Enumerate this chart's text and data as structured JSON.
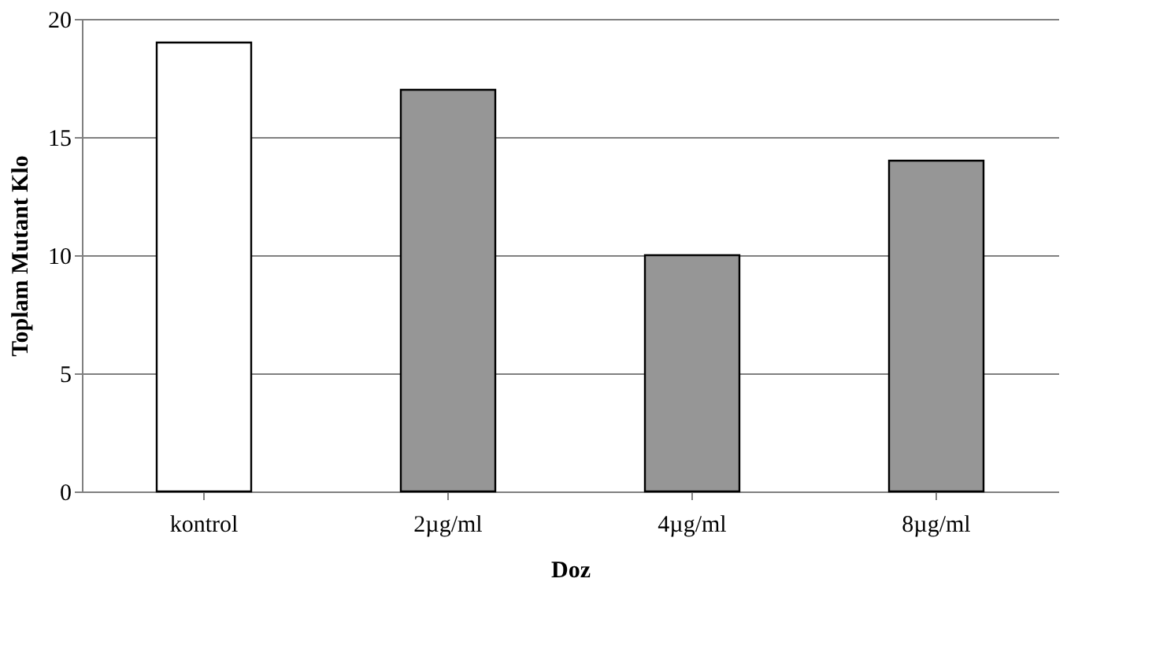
{
  "chart_data": {
    "type": "bar",
    "xlabel": "Doz",
    "ylabel": "Toplam Mutant Klo",
    "categories": [
      "kontrol",
      "2µg/ml",
      "4µg/ml",
      "8µg/ml"
    ],
    "values": [
      19,
      17,
      10,
      14
    ],
    "colors": [
      "#ffffff",
      "#969696",
      "#969696",
      "#969696"
    ],
    "ylim": [
      0,
      20
    ],
    "yticks": [
      0,
      5,
      10,
      15,
      20
    ],
    "grid": "y"
  }
}
